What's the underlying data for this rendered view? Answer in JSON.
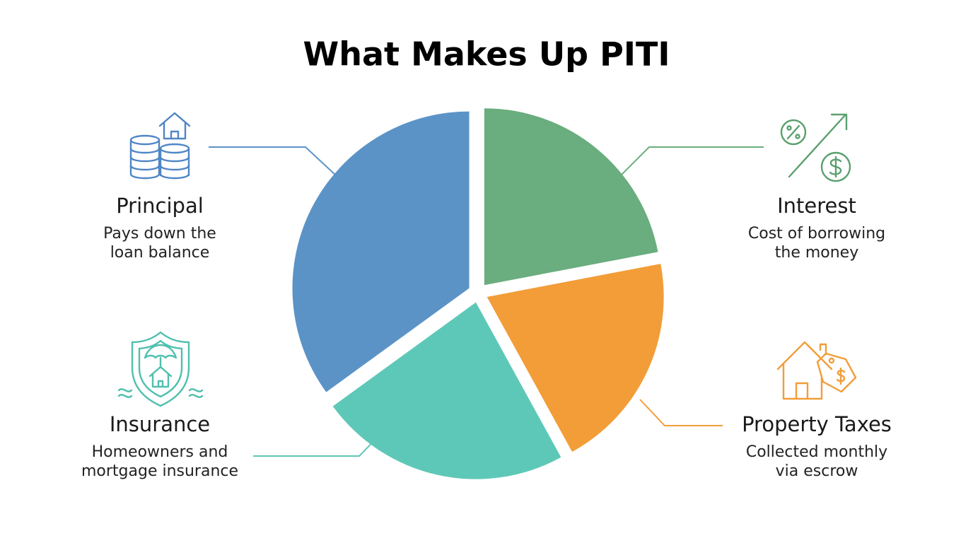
{
  "chart_data": {
    "type": "pie",
    "title": "What Makes Up PITI",
    "categories": [
      "Interest",
      "Property Taxes",
      "Insurance",
      "Principal"
    ],
    "descriptions": [
      [
        "Cost of borrowing",
        "the money"
      ],
      [
        "Collected monthly",
        "via escrow"
      ],
      [
        "Homeowners and",
        "mortgage insurance"
      ],
      [
        "Pays down the",
        "loan balance"
      ]
    ],
    "values": [
      22,
      20,
      23,
      35
    ],
    "colors": [
      "#6aad7e",
      "#f29d38",
      "#5ec8b8",
      "#5b93c7"
    ]
  }
}
